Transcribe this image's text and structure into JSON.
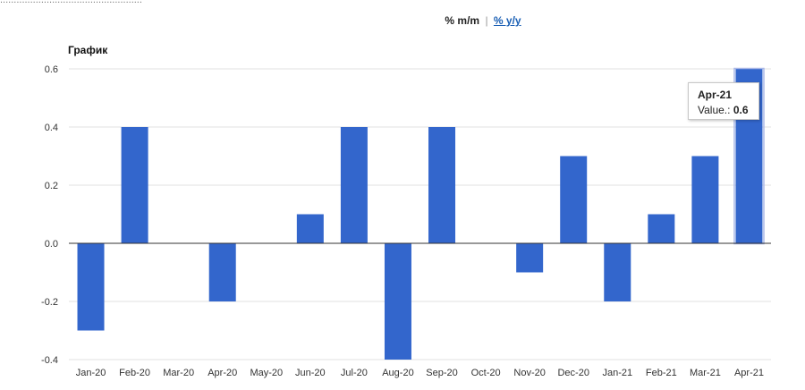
{
  "header": {
    "cut_text": "....................................................",
    "mm_label": "% m/m",
    "separator": "|",
    "yy_label": "% y/y"
  },
  "chart_title": "График",
  "tooltip": {
    "title": "Apr-21",
    "value_label": "Value.:",
    "value": "0.6"
  },
  "colors": {
    "bar": "#3366cc",
    "grid": "#e0e0e0",
    "zero_line": "#333333",
    "link": "#1a5fb4"
  },
  "chart_data": {
    "type": "bar",
    "title": "График",
    "categories": [
      "Jan-20",
      "Feb-20",
      "Mar-20",
      "Apr-20",
      "May-20",
      "Jun-20",
      "Jul-20",
      "Aug-20",
      "Sep-20",
      "Oct-20",
      "Nov-20",
      "Dec-20",
      "Jan-21",
      "Feb-21",
      "Mar-21",
      "Apr-21"
    ],
    "values": [
      -0.3,
      0.4,
      0.0,
      -0.2,
      0.0,
      0.1,
      0.4,
      -0.4,
      0.4,
      0.0,
      -0.1,
      0.3,
      -0.2,
      0.1,
      0.3,
      0.6
    ],
    "ylim": [
      -0.4,
      0.6
    ],
    "yticks": [
      "0.6",
      "0.4",
      "0.2",
      "0.0",
      "-0.2",
      "-0.4"
    ],
    "ytick_values": [
      0.6,
      0.4,
      0.2,
      0.0,
      -0.2,
      -0.4
    ],
    "highlighted": "Apr-21",
    "grid": true
  }
}
